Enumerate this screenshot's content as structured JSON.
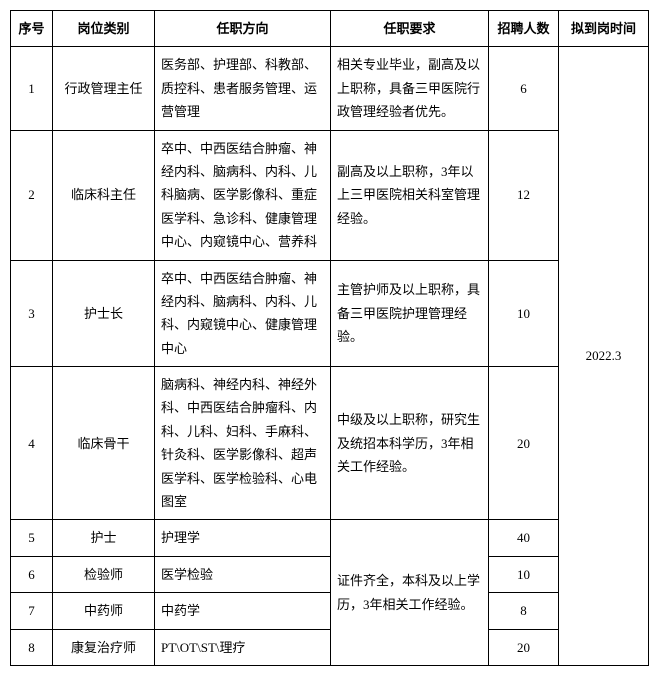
{
  "table": {
    "headers": {
      "seq": "序号",
      "category": "岗位类别",
      "direction": "任职方向",
      "requirement": "任职要求",
      "number": "招聘人数",
      "time": "拟到岗时间"
    },
    "arrival_time": "2022.3",
    "rows": [
      {
        "seq": "1",
        "category": "行政管理主任",
        "direction": "医务部、护理部、科教部、质控科、患者服务管理、运营管理",
        "requirement": "相关专业毕业，副高及以上职称，具备三甲医院行政管理经验者优先。",
        "number": "6"
      },
      {
        "seq": "2",
        "category": "临床科主任",
        "direction": "卒中、中西医结合肿瘤、神经内科、脑病科、内科、儿科脑病、医学影像科、重症医学科、急诊科、健康管理中心、内窥镜中心、营养科",
        "requirement": "副高及以上职称，3年以上三甲医院相关科室管理经验。",
        "number": "12"
      },
      {
        "seq": "3",
        "category": "护士长",
        "direction": "卒中、中西医结合肿瘤、神经内科、脑病科、内科、儿科、内窥镜中心、健康管理中心",
        "requirement": "主管护师及以上职称，具备三甲医院护理管理经验。",
        "number": "10"
      },
      {
        "seq": "4",
        "category": "临床骨干",
        "direction": "脑病科、神经内科、神经外科、中西医结合肿瘤科、内科、儿科、妇科、手麻科、针灸科、医学影像科、超声医学科、医学检验科、心电图室",
        "requirement": "中级及以上职称，研究生及统招本科学历，3年相关工作经验。",
        "number": "20"
      },
      {
        "seq": "5",
        "category": "护士",
        "direction": "护理学",
        "number": "40"
      },
      {
        "seq": "6",
        "category": "检验师",
        "direction": "医学检验",
        "number": "10"
      },
      {
        "seq": "7",
        "category": "中药师",
        "direction": "中药学",
        "number": "8"
      },
      {
        "seq": "8",
        "category": "康复治疗师",
        "direction": "PT\\OT\\ST\\理疗",
        "number": "20"
      }
    ],
    "shared_requirement_5to8": "证件齐全，本科及以上学历，3年相关工作经验。"
  }
}
